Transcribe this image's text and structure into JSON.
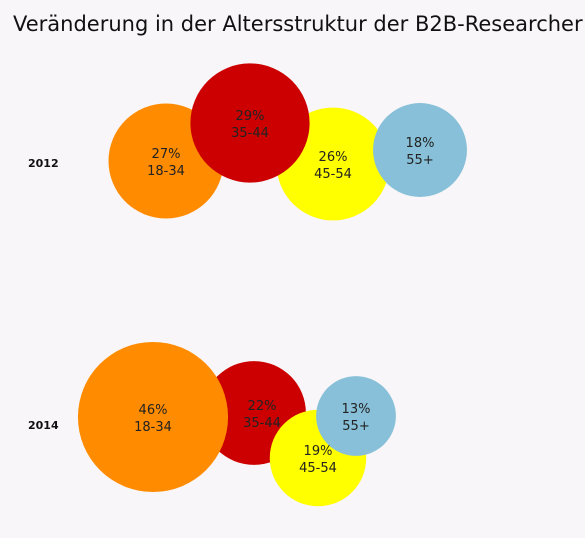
{
  "chart_data": {
    "type": "bubble",
    "title": "Veränderung in der Altersstruktur der B2B-Researcher",
    "groups": [
      {
        "year": "2012",
        "bubbles": [
          {
            "value": 27,
            "label": "27%",
            "category": "18-34",
            "color": "#ff8c00"
          },
          {
            "value": 29,
            "label": "29%",
            "category": "35-44",
            "color": "#cc0000"
          },
          {
            "value": 26,
            "label": "26%",
            "category": "45-54",
            "color": "#ffff00"
          },
          {
            "value": 18,
            "label": "18%",
            "category": "55+",
            "color": "#87c0d8"
          }
        ]
      },
      {
        "year": "2014",
        "bubbles": [
          {
            "value": 46,
            "label": "46%",
            "category": "18-34",
            "color": "#ff8c00"
          },
          {
            "value": 22,
            "label": "22%",
            "category": "35-44",
            "color": "#cc0000"
          },
          {
            "value": 19,
            "label": "19%",
            "category": "45-54",
            "color": "#ffff00"
          },
          {
            "value": 13,
            "label": "13%",
            "category": "55+",
            "color": "#87c0d8"
          }
        ]
      }
    ]
  }
}
